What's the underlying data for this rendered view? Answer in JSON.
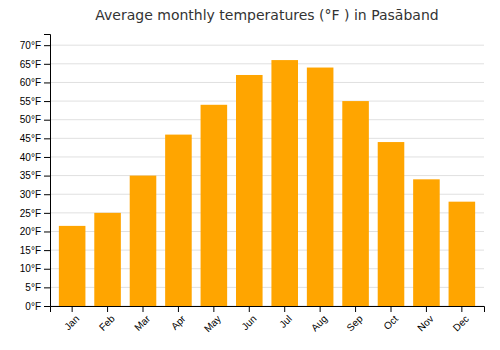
{
  "chart_data": {
    "type": "bar",
    "title": "Average monthly temperatures (°F ) in Pasāband",
    "categories": [
      "Jan",
      "Feb",
      "Mar",
      "Apr",
      "May",
      "Jun",
      "Jul",
      "Aug",
      "Sep",
      "Oct",
      "Nov",
      "Dec"
    ],
    "values": [
      21.5,
      25,
      35,
      46,
      54,
      62,
      66,
      64,
      55,
      44,
      34,
      28
    ],
    "color": "#FFA500",
    "ylim": [
      0,
      73
    ],
    "yticks": [
      {
        "value": 0,
        "label": "0°F"
      },
      {
        "value": 5,
        "label": "5°F"
      },
      {
        "value": 10,
        "label": "10°F"
      },
      {
        "value": 15,
        "label": "15°F"
      },
      {
        "value": 20,
        "label": "20°F"
      },
      {
        "value": 25,
        "label": "25°F"
      },
      {
        "value": 30,
        "label": "30°F"
      },
      {
        "value": 35,
        "label": "35°F"
      },
      {
        "value": 40,
        "label": "40°F"
      },
      {
        "value": 45,
        "label": "45°F"
      },
      {
        "value": 50,
        "label": "50°F"
      },
      {
        "value": 55,
        "label": "55°F"
      },
      {
        "value": 60,
        "label": "60°F"
      },
      {
        "value": 65,
        "label": "65°F"
      },
      {
        "value": 70,
        "label": "70°F"
      }
    ],
    "grid": true
  }
}
